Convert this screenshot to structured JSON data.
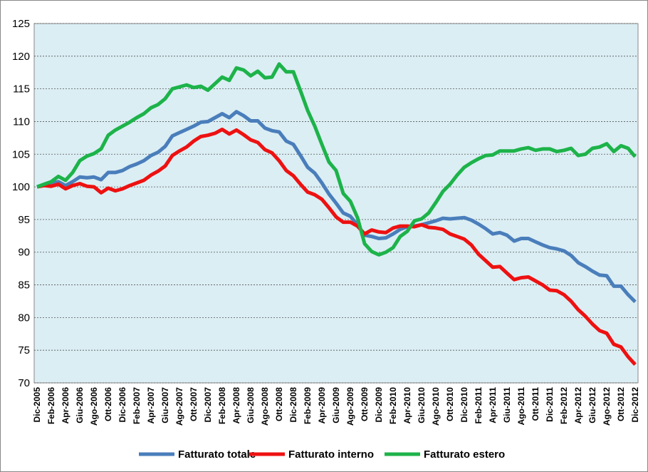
{
  "chart_data": {
    "type": "line",
    "categories": [
      "Dic-2005",
      null,
      "Feb-2006",
      null,
      "Apr-2006",
      null,
      "Giu-2006",
      null,
      "Ago-2006",
      null,
      "Ott-2006",
      null,
      "Dic-2006",
      null,
      "Feb-2007",
      null,
      "Apr-2007",
      null,
      "Giu-2007",
      null,
      "Ago-2007",
      null,
      "Ott-2007",
      null,
      "Dic-2007",
      null,
      "Feb-2008",
      null,
      "Apr-2008",
      null,
      "Giu-2008",
      null,
      "Ago-2008",
      null,
      "Ott-2008",
      null,
      "Dic-2008",
      null,
      "Feb-2009",
      null,
      "Apr-2009",
      null,
      "Giu-2009",
      null,
      "Ago-2009",
      null,
      "Ott-2009",
      null,
      "Dic-2009",
      null,
      "Feb-2010",
      null,
      "Apr-2010",
      null,
      "Giu-2010",
      null,
      "Ago-2010",
      null,
      "Ott-2010",
      null,
      "Dic-2010",
      null,
      "Feb-2011",
      null,
      "Apr-2011",
      null,
      "Giu-2011",
      null,
      "Ago-2011",
      null,
      "Ott-2011",
      null,
      "Dic-2011",
      null,
      "Feb-2012",
      null,
      "Apr-2012",
      null,
      "Giu-2012",
      null,
      "Ago-2012",
      null,
      "Ott-2012",
      null,
      "Dic-2012"
    ],
    "series": [
      {
        "name": "Fatturato totale",
        "color": "#4a7ebb",
        "values": [
          100,
          100.3,
          100.5,
          100.8,
          100.2,
          100.8,
          101.5,
          101.4,
          101.5,
          101.1,
          102.2,
          102.2,
          102.5,
          103.1,
          103.5,
          104,
          104.8,
          105.3,
          106.2,
          107.8,
          108.3,
          108.8,
          109.3,
          109.9,
          110,
          110.6,
          111.2,
          110.6,
          111.5,
          110.9,
          110.1,
          110.1,
          109,
          108.6,
          108.4,
          107,
          106.5,
          104.8,
          103,
          102.1,
          100.6,
          98.9,
          97.5,
          96,
          95.5,
          94.2,
          92.6,
          92.4,
          92.1,
          92.2,
          92.8,
          93.5,
          93.9,
          94,
          94.2,
          94.5,
          94.8,
          95.2,
          95.1,
          95.2,
          95.3,
          94.9,
          94.3,
          93.6,
          92.8,
          93,
          92.6,
          91.7,
          92.1,
          92.1,
          91.6,
          91.1,
          90.7,
          90.5,
          90.2,
          89.5,
          88.4,
          87.8,
          87.1,
          86.5,
          86.4,
          84.8,
          84.8,
          83.5,
          82.4
        ]
      },
      {
        "name": "Fatturato interno",
        "color": "#ee1111",
        "values": [
          100,
          100.2,
          100.1,
          100.4,
          99.7,
          100.2,
          100.5,
          100.1,
          100,
          99.1,
          99.8,
          99.4,
          99.7,
          100.2,
          100.6,
          101,
          101.8,
          102.4,
          103.2,
          104.8,
          105.5,
          106.1,
          107,
          107.7,
          107.9,
          108.2,
          108.8,
          108.1,
          108.7,
          108,
          107.2,
          106.8,
          105.7,
          105.2,
          104,
          102.5,
          101.7,
          100.4,
          99.2,
          98.8,
          98.1,
          96.8,
          95.4,
          94.6,
          94.6,
          94,
          92.8,
          93.4,
          93.1,
          93,
          93.7,
          94,
          94,
          93.9,
          94.2,
          93.8,
          93.7,
          93.5,
          92.8,
          92.4,
          92,
          91.1,
          89.7,
          88.7,
          87.7,
          87.8,
          86.8,
          85.8,
          86.1,
          86.2,
          85.6,
          85,
          84.2,
          84.1,
          83.5,
          82.5,
          81.2,
          80.2,
          79,
          78,
          77.6,
          75.9,
          75.5,
          74,
          72.8
        ]
      },
      {
        "name": "Fatturato estero",
        "color": "#1db34a",
        "values": [
          100,
          100.4,
          100.8,
          101.6,
          101,
          102.2,
          104,
          104.7,
          105.1,
          105.8,
          107.9,
          108.7,
          109.3,
          109.9,
          110.6,
          111.2,
          112.1,
          112.6,
          113.5,
          115,
          115.3,
          115.6,
          115.2,
          115.4,
          114.8,
          115.8,
          116.8,
          116.3,
          118.2,
          117.9,
          117,
          117.7,
          116.7,
          116.8,
          118.8,
          117.6,
          117.6,
          114.7,
          111.7,
          109.3,
          106.5,
          103.8,
          102.5,
          99,
          97.8,
          95.3,
          91.3,
          90.1,
          89.6,
          90,
          90.7,
          92.4,
          93.2,
          94.8,
          95.1,
          96,
          97.6,
          99.3,
          100.4,
          101.8,
          103,
          103.7,
          104.3,
          104.8,
          104.9,
          105.5,
          105.5,
          105.5,
          105.8,
          106,
          105.6,
          105.8,
          105.8,
          105.4,
          105.6,
          105.9,
          104.8,
          105,
          105.9,
          106.1,
          106.6,
          105.4,
          106.3,
          105.9,
          104.6
        ]
      }
    ],
    "ylim": [
      70,
      125
    ],
    "yticks": [
      70,
      75,
      80,
      85,
      90,
      95,
      100,
      105,
      110,
      115,
      120,
      125
    ],
    "grid": true,
    "legend": "bottom"
  }
}
